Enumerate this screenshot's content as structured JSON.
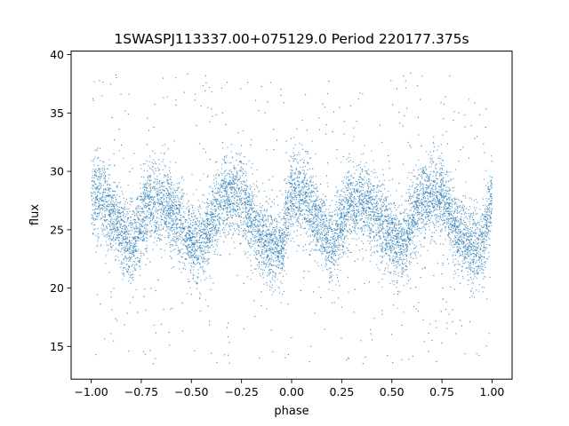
{
  "chart_data": {
    "type": "scatter",
    "title": "1SWASPJ113337.00+075129.0 Period 220177.375s",
    "xlabel": "phase",
    "ylabel": "flux",
    "xlim": [
      -1.1,
      1.1
    ],
    "ylim": [
      12.2,
      40.3
    ],
    "grid": false,
    "x_ticks": [
      {
        "value": -1.0,
        "label": "−1.00"
      },
      {
        "value": -0.75,
        "label": "−0.75"
      },
      {
        "value": -0.5,
        "label": "−0.50"
      },
      {
        "value": -0.25,
        "label": "−0.25"
      },
      {
        "value": 0.0,
        "label": "0.00"
      },
      {
        "value": 0.25,
        "label": "0.25"
      },
      {
        "value": 0.5,
        "label": "0.50"
      },
      {
        "value": 0.75,
        "label": "0.75"
      },
      {
        "value": 1.0,
        "label": "1.00"
      }
    ],
    "y_ticks": [
      {
        "value": 15,
        "label": "15"
      },
      {
        "value": 20,
        "label": "20"
      },
      {
        "value": 25,
        "label": "25"
      },
      {
        "value": 30,
        "label": "30"
      },
      {
        "value": 35,
        "label": "35"
      },
      {
        "value": 40,
        "label": "40"
      }
    ],
    "series": [
      {
        "color": "#1f77b4",
        "x_range": [
          -1.0,
          1.0
        ],
        "point_count": 9000,
        "mean_curve": [
          [
            -1.0,
            27.8
          ],
          [
            -0.95,
            27.8
          ],
          [
            -0.9,
            26.8
          ],
          [
            -0.85,
            25.0
          ],
          [
            -0.8,
            23.6
          ],
          [
            -0.75,
            25.8
          ],
          [
            -0.7,
            27.6
          ],
          [
            -0.65,
            27.5
          ],
          [
            -0.6,
            26.8
          ],
          [
            -0.55,
            25.6
          ],
          [
            -0.5,
            24.2
          ],
          [
            -0.45,
            23.6
          ],
          [
            -0.4,
            25.5
          ],
          [
            -0.35,
            27.6
          ],
          [
            -0.3,
            28.0
          ],
          [
            -0.25,
            27.8
          ],
          [
            -0.2,
            26.0
          ],
          [
            -0.15,
            24.5
          ],
          [
            -0.1,
            23.4
          ],
          [
            -0.05,
            23.5
          ],
          [
            0.0,
            28.0
          ],
          [
            0.05,
            27.8
          ],
          [
            0.1,
            26.8
          ],
          [
            0.15,
            25.0
          ],
          [
            0.2,
            23.6
          ],
          [
            0.25,
            25.8
          ],
          [
            0.3,
            27.6
          ],
          [
            0.35,
            27.5
          ],
          [
            0.4,
            26.8
          ],
          [
            0.45,
            25.6
          ],
          [
            0.5,
            24.2
          ],
          [
            0.55,
            23.6
          ],
          [
            0.6,
            25.5
          ],
          [
            0.65,
            27.6
          ],
          [
            0.7,
            28.0
          ],
          [
            0.75,
            27.8
          ],
          [
            0.8,
            26.0
          ],
          [
            0.85,
            24.5
          ],
          [
            0.9,
            23.4
          ],
          [
            0.95,
            23.5
          ],
          [
            1.0,
            27.8
          ]
        ],
        "core_spread": 1.7,
        "outlier_range": [
          13.5,
          38.5
        ],
        "outlier_fraction": 0.06
      }
    ]
  }
}
